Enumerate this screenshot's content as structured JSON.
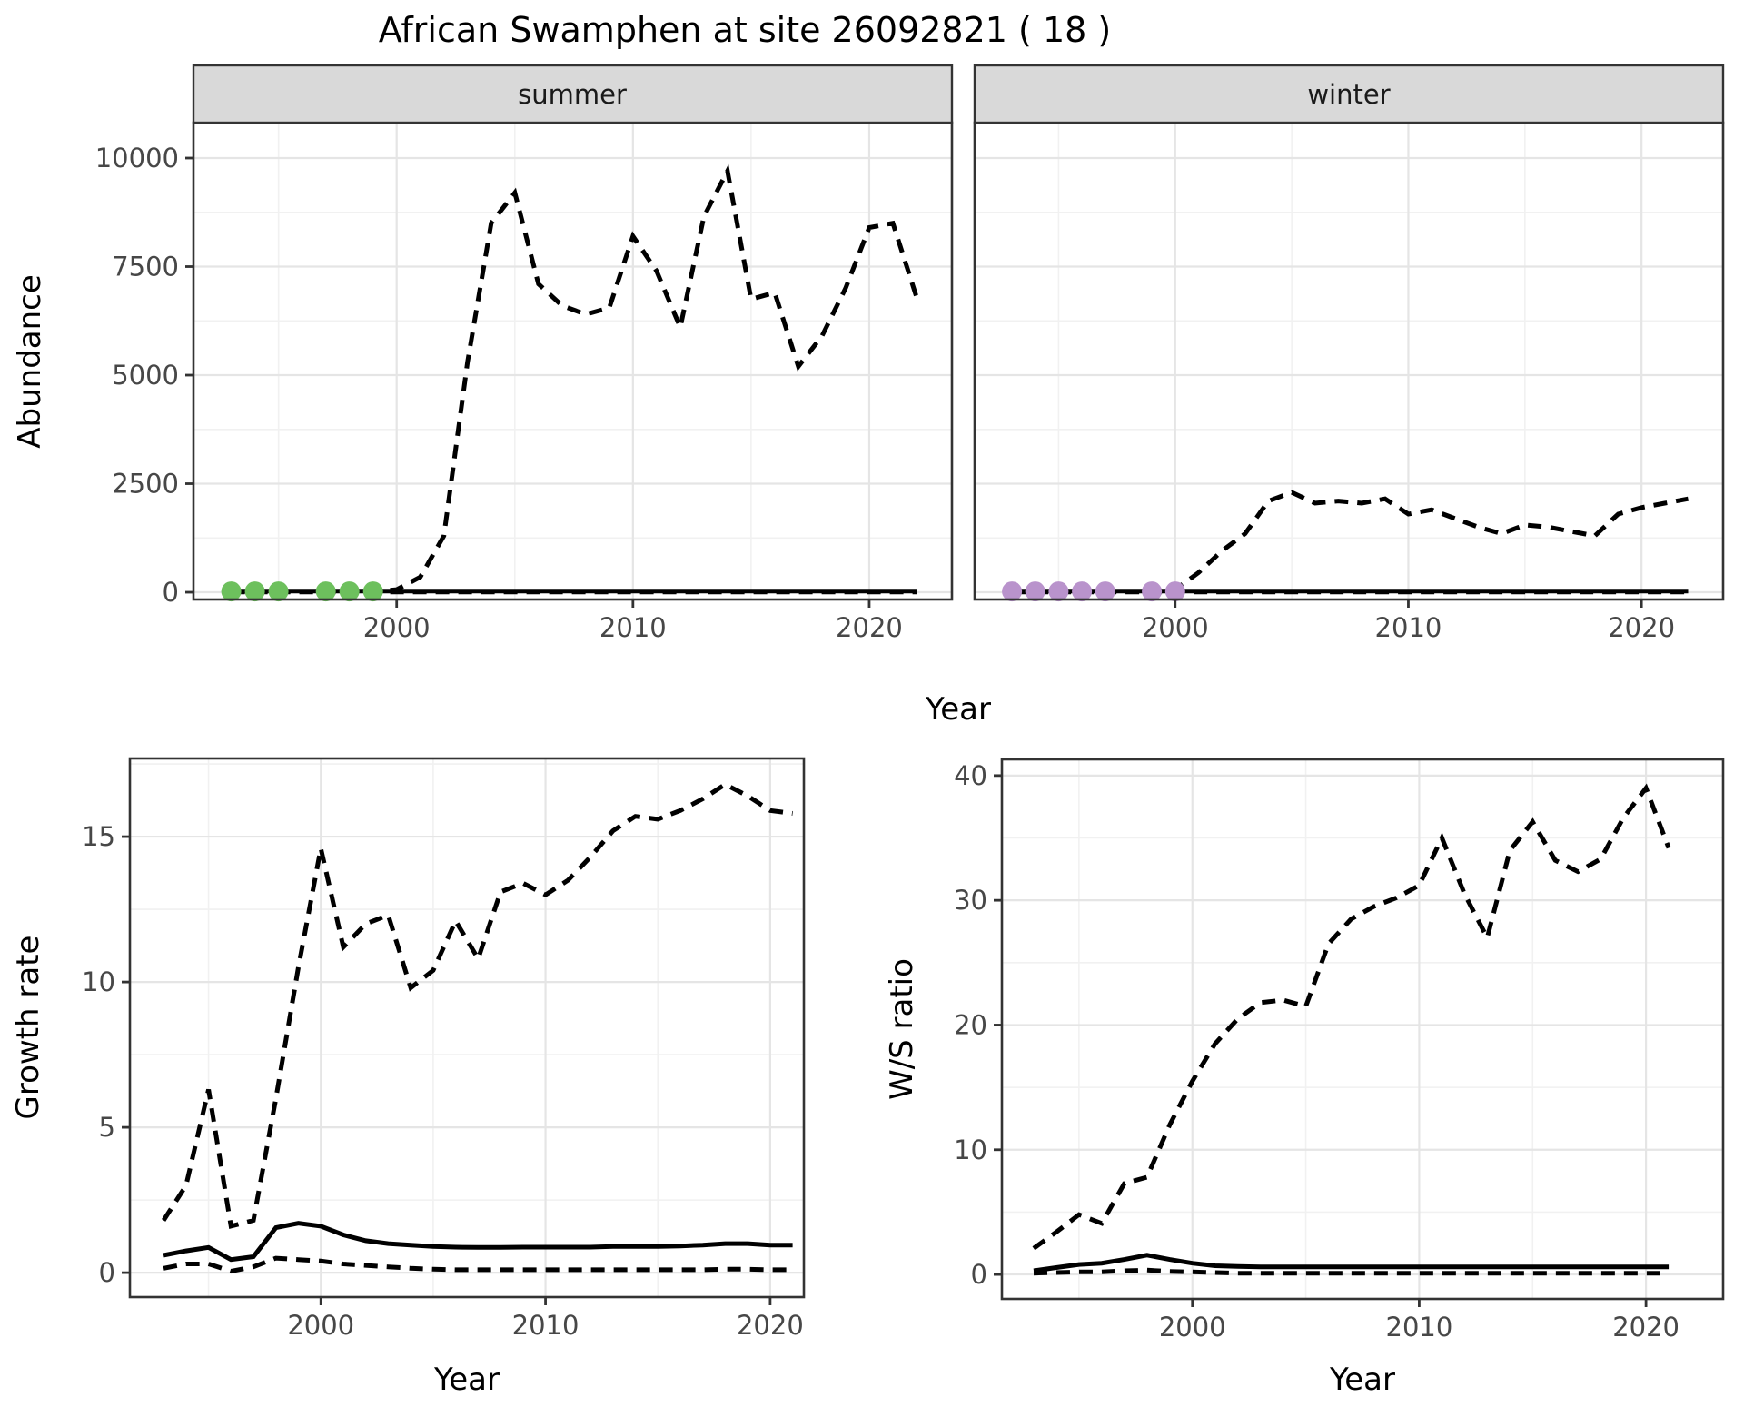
{
  "title": "African Swamphen at site 26092821 ( 18 )",
  "colors": {
    "summer_points": "#6dc05d",
    "winter_points": "#b993cc",
    "line": "#000000",
    "panel_border": "#333333",
    "strip_bg": "#d9d9d9",
    "grid_major": "#e5e5e5",
    "grid_minor": "#f1f1f1",
    "tick_text": "#474747"
  },
  "chart_data": [
    {
      "id": "abundance-summer",
      "type": "line",
      "facet_label": "summer",
      "xlabel": "Year",
      "ylabel": "Abundance",
      "xlim": [
        1991.4,
        2023.5
      ],
      "ylim": [
        -167,
        10816
      ],
      "xticks": [
        2000,
        2010,
        2020
      ],
      "xminor": [
        1995,
        2005,
        2015
      ],
      "yticks": [
        0,
        2500,
        5000,
        7500,
        10000
      ],
      "yminor": [
        1250,
        3750,
        6250,
        8750
      ],
      "grid": true,
      "legend": "none",
      "series": [
        {
          "name": "upper_ci",
          "style": "dashed",
          "x": [
            1993,
            1994,
            1995,
            1996,
            1997,
            1998,
            1999,
            2000,
            2001,
            2002,
            2003,
            2004,
            2005,
            2006,
            2007,
            2008,
            2009,
            2010,
            2011,
            2012,
            2013,
            2014,
            2015,
            2016,
            2017,
            2018,
            2019,
            2020,
            2021,
            2022
          ],
          "y": [
            15,
            15,
            15,
            15,
            15,
            15,
            15,
            60,
            350,
            1300,
            5300,
            8500,
            9200,
            7100,
            6600,
            6400,
            6550,
            8200,
            7400,
            6100,
            8650,
            9700,
            6750,
            6900,
            5200,
            5900,
            7000,
            8400,
            8500,
            6800
          ]
        },
        {
          "name": "fit",
          "style": "solid",
          "x": [
            1993,
            1994,
            1995,
            1996,
            1997,
            1998,
            1999,
            2000,
            2001,
            2002,
            2003,
            2004,
            2005,
            2006,
            2007,
            2008,
            2009,
            2010,
            2011,
            2012,
            2013,
            2014,
            2015,
            2016,
            2017,
            2018,
            2019,
            2020,
            2021,
            2022
          ],
          "y": [
            25,
            25,
            25,
            25,
            25,
            25,
            25,
            25,
            25,
            25,
            25,
            25,
            25,
            25,
            25,
            25,
            25,
            25,
            25,
            25,
            25,
            25,
            25,
            25,
            25,
            25,
            25,
            25,
            25,
            25
          ]
        },
        {
          "name": "lower_ci",
          "style": "dashed",
          "x": [
            1993,
            1994,
            1995,
            1996,
            1997,
            1998,
            1999,
            2000,
            2001,
            2002,
            2003,
            2004,
            2005,
            2006,
            2007,
            2008,
            2009,
            2010,
            2011,
            2012,
            2013,
            2014,
            2015,
            2016,
            2017,
            2018,
            2019,
            2020,
            2021,
            2022
          ],
          "y": [
            5,
            5,
            5,
            5,
            5,
            5,
            5,
            5,
            5,
            5,
            5,
            5,
            5,
            5,
            5,
            5,
            5,
            5,
            5,
            5,
            5,
            5,
            5,
            5,
            5,
            5,
            5,
            5,
            5,
            5
          ]
        }
      ],
      "points": {
        "name": "observed-counts-summer",
        "color": "#6dc05d",
        "x": [
          1993,
          1994,
          1995,
          1997,
          1998,
          1999
        ],
        "y": [
          20,
          20,
          20,
          20,
          20,
          20
        ]
      }
    },
    {
      "id": "abundance-winter",
      "type": "line",
      "facet_label": "winter",
      "xlabel": "Year",
      "ylabel": "Abundance",
      "xlim": [
        1991.4,
        2023.5
      ],
      "ylim": [
        -167,
        10816
      ],
      "xticks": [
        2000,
        2010,
        2020
      ],
      "xminor": [
        1995,
        2005,
        2015
      ],
      "yticks": [
        0,
        2500,
        5000,
        7500,
        10000
      ],
      "yminor": [
        1250,
        3750,
        6250,
        8750
      ],
      "grid": true,
      "legend": "none",
      "series": [
        {
          "name": "upper_ci",
          "style": "dashed",
          "x": [
            1993,
            1994,
            1995,
            1996,
            1997,
            1998,
            1999,
            2000,
            2001,
            2002,
            2003,
            2004,
            2005,
            2006,
            2007,
            2008,
            2009,
            2010,
            2011,
            2012,
            2013,
            2014,
            2015,
            2016,
            2017,
            2018,
            2019,
            2020,
            2021,
            2022
          ],
          "y": [
            15,
            15,
            15,
            15,
            15,
            15,
            15,
            60,
            450,
            950,
            1350,
            2100,
            2300,
            2050,
            2100,
            2050,
            2150,
            1800,
            1900,
            1700,
            1500,
            1350,
            1550,
            1500,
            1400,
            1300,
            1800,
            1950,
            2050,
            2150
          ]
        },
        {
          "name": "fit",
          "style": "solid",
          "x": [
            1993,
            1994,
            1995,
            1996,
            1997,
            1998,
            1999,
            2000,
            2001,
            2002,
            2003,
            2004,
            2005,
            2006,
            2007,
            2008,
            2009,
            2010,
            2011,
            2012,
            2013,
            2014,
            2015,
            2016,
            2017,
            2018,
            2019,
            2020,
            2021,
            2022
          ],
          "y": [
            25,
            25,
            25,
            25,
            25,
            25,
            25,
            25,
            25,
            25,
            25,
            25,
            25,
            25,
            25,
            25,
            25,
            25,
            25,
            25,
            25,
            25,
            25,
            25,
            25,
            25,
            25,
            25,
            25,
            25
          ]
        },
        {
          "name": "lower_ci",
          "style": "dashed",
          "x": [
            1993,
            1994,
            1995,
            1996,
            1997,
            1998,
            1999,
            2000,
            2001,
            2002,
            2003,
            2004,
            2005,
            2006,
            2007,
            2008,
            2009,
            2010,
            2011,
            2012,
            2013,
            2014,
            2015,
            2016,
            2017,
            2018,
            2019,
            2020,
            2021,
            2022
          ],
          "y": [
            5,
            5,
            5,
            5,
            5,
            5,
            5,
            5,
            5,
            5,
            5,
            5,
            5,
            5,
            5,
            5,
            5,
            5,
            5,
            5,
            5,
            5,
            5,
            5,
            5,
            5,
            5,
            5,
            5,
            5
          ]
        }
      ],
      "points": {
        "name": "observed-counts-winter",
        "color": "#b993cc",
        "x": [
          1993,
          1994,
          1995,
          1996,
          1997,
          1999,
          2000
        ],
        "y": [
          20,
          20,
          20,
          20,
          20,
          20,
          20
        ]
      }
    },
    {
      "id": "growth-rate",
      "type": "line",
      "facet_label": "",
      "xlabel": "Year",
      "ylabel": "Growth rate",
      "xlim": [
        1991.5,
        2021.5
      ],
      "ylim": [
        -0.84,
        17.69
      ],
      "xticks": [
        2000,
        2010,
        2020
      ],
      "xminor": [
        1995,
        2005,
        2015
      ],
      "yticks": [
        0,
        5,
        10,
        15
      ],
      "yminor": [
        2.5,
        7.5,
        12.5,
        17.5
      ],
      "grid": true,
      "legend": "none",
      "series": [
        {
          "name": "upper_ci",
          "style": "dashed",
          "x": [
            1993,
            1994,
            1995,
            1996,
            1997,
            1998,
            1999,
            2000,
            2001,
            2002,
            2003,
            2004,
            2005,
            2006,
            2007,
            2008,
            2009,
            2010,
            2011,
            2012,
            2013,
            2014,
            2015,
            2016,
            2017,
            2018,
            2019,
            2020,
            2021
          ],
          "y": [
            1.8,
            3.0,
            6.3,
            1.6,
            1.8,
            6.0,
            10.5,
            14.6,
            11.2,
            12.0,
            12.3,
            9.8,
            10.4,
            12.1,
            10.8,
            13.1,
            13.4,
            13.0,
            13.5,
            14.3,
            15.2,
            15.7,
            15.6,
            15.9,
            16.3,
            16.8,
            16.4,
            15.9,
            15.8
          ]
        },
        {
          "name": "fit",
          "style": "solid",
          "x": [
            1993,
            1994,
            1995,
            1996,
            1997,
            1998,
            1999,
            2000,
            2001,
            2002,
            2003,
            2004,
            2005,
            2006,
            2007,
            2008,
            2009,
            2010,
            2011,
            2012,
            2013,
            2014,
            2015,
            2016,
            2017,
            2018,
            2019,
            2020,
            2021
          ],
          "y": [
            0.6,
            0.75,
            0.87,
            0.45,
            0.55,
            1.55,
            1.7,
            1.6,
            1.3,
            1.1,
            1.0,
            0.95,
            0.9,
            0.88,
            0.87,
            0.87,
            0.88,
            0.88,
            0.88,
            0.88,
            0.9,
            0.9,
            0.9,
            0.92,
            0.95,
            1.0,
            1.0,
            0.95,
            0.95
          ]
        },
        {
          "name": "lower_ci",
          "style": "dashed",
          "x": [
            1993,
            1994,
            1995,
            1996,
            1997,
            1998,
            1999,
            2000,
            2001,
            2002,
            2003,
            2004,
            2005,
            2006,
            2007,
            2008,
            2009,
            2010,
            2011,
            2012,
            2013,
            2014,
            2015,
            2016,
            2017,
            2018,
            2019,
            2020,
            2021
          ],
          "y": [
            0.15,
            0.3,
            0.3,
            0.05,
            0.2,
            0.5,
            0.45,
            0.4,
            0.3,
            0.25,
            0.2,
            0.15,
            0.12,
            0.1,
            0.1,
            0.1,
            0.1,
            0.1,
            0.1,
            0.1,
            0.1,
            0.1,
            0.1,
            0.1,
            0.1,
            0.12,
            0.12,
            0.1,
            0.1
          ]
        }
      ],
      "points": null
    },
    {
      "id": "ws-ratio",
      "type": "line",
      "facet_label": "",
      "xlabel": "Year",
      "ylabel": "W/S ratio",
      "xlim": [
        1991.6,
        2023.4
      ],
      "ylim": [
        -1.96,
        41.3
      ],
      "xticks": [
        2000,
        2010,
        2020
      ],
      "xminor": [
        1995,
        2005,
        2015
      ],
      "yticks": [
        0,
        10,
        20,
        30,
        40
      ],
      "yminor": [
        5,
        15,
        25,
        35
      ],
      "grid": true,
      "legend": "none",
      "series": [
        {
          "name": "upper_ci",
          "style": "dashed",
          "x": [
            1993,
            1994,
            1995,
            1996,
            1997,
            1998,
            1999,
            2000,
            2001,
            2002,
            2003,
            2004,
            2005,
            2006,
            2007,
            2008,
            2009,
            2010,
            2011,
            2012,
            2013,
            2014,
            2015,
            2016,
            2017,
            2018,
            2019,
            2020,
            2021
          ],
          "y": [
            2.1,
            3.4,
            4.8,
            4.1,
            7.3,
            7.8,
            12,
            15.5,
            18.5,
            20.5,
            21.8,
            22,
            21.5,
            26.5,
            28.5,
            29.5,
            30.2,
            31.2,
            35,
            30.5,
            27,
            34,
            36.3,
            33.2,
            32.3,
            33.3,
            36.6,
            39,
            34.2
          ]
        },
        {
          "name": "fit",
          "style": "solid",
          "x": [
            1993,
            1994,
            1995,
            1996,
            1997,
            1998,
            1999,
            2000,
            2001,
            2002,
            2003,
            2004,
            2005,
            2006,
            2007,
            2008,
            2009,
            2010,
            2011,
            2012,
            2013,
            2014,
            2015,
            2016,
            2017,
            2018,
            2019,
            2020,
            2021
          ],
          "y": [
            0.3,
            0.55,
            0.8,
            0.9,
            1.2,
            1.55,
            1.2,
            0.9,
            0.7,
            0.65,
            0.6,
            0.6,
            0.6,
            0.6,
            0.6,
            0.6,
            0.6,
            0.6,
            0.6,
            0.6,
            0.6,
            0.6,
            0.6,
            0.6,
            0.6,
            0.6,
            0.6,
            0.6,
            0.6
          ]
        },
        {
          "name": "lower_ci",
          "style": "dashed",
          "x": [
            1993,
            1994,
            1995,
            1996,
            1997,
            1998,
            1999,
            2000,
            2001,
            2002,
            2003,
            2004,
            2005,
            2006,
            2007,
            2008,
            2009,
            2010,
            2011,
            2012,
            2013,
            2014,
            2015,
            2016,
            2017,
            2018,
            2019,
            2020,
            2021
          ],
          "y": [
            0.1,
            0.15,
            0.2,
            0.2,
            0.3,
            0.35,
            0.25,
            0.2,
            0.15,
            0.1,
            0.1,
            0.1,
            0.1,
            0.1,
            0.1,
            0.1,
            0.1,
            0.1,
            0.1,
            0.1,
            0.1,
            0.1,
            0.1,
            0.1,
            0.1,
            0.1,
            0.1,
            0.1,
            0.1
          ]
        }
      ],
      "points": null
    }
  ]
}
